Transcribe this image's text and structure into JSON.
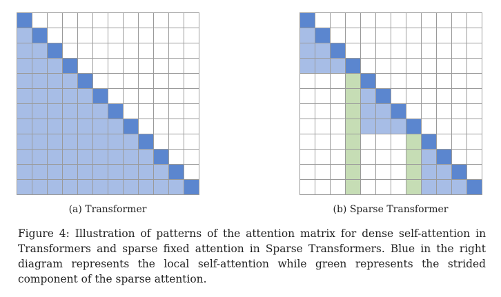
{
  "panel_a": {
    "caption": "(a) Transformer",
    "size": 12,
    "pattern": "dense-causal"
  },
  "panel_b": {
    "caption": "(b) Sparse Transformer",
    "size": 12,
    "pattern": "sparse-fixed",
    "block": 4,
    "stride_columns": [
      3,
      7
    ]
  },
  "colors": {
    "diagonal": "#5b86cf",
    "local": "#a7bde6",
    "strided": "#c6ddb5",
    "empty": "#ffffff",
    "grid": "#9a9a9a"
  },
  "figure_caption": "Figure 4: Illustration of patterns of the attention matrix for dense self-attention in Transformers and sparse fixed attention in Sparse Transformers. Blue in the right diagram represents the local self-attention while green represents the strided component of the sparse attention."
}
